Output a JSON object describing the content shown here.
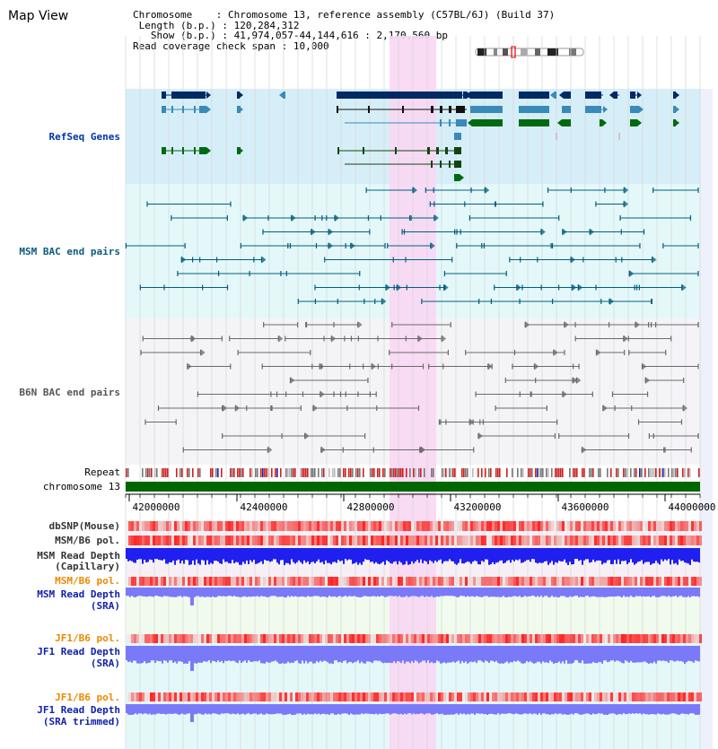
{
  "view_title": "Map View",
  "info": {
    "chromosome_key": "Chromosome",
    "chromosome_val": "Chromosome 13, reference assembly (C57BL/6J) (Build 37)",
    "length_key": "Length (b.p.)",
    "length_val": "120,284,312",
    "show_key": "Show (b.p.)",
    "show_val": "41,974,057-44,144,616 : 2,170,560 bp",
    "coverage_key": "Read coverage check span",
    "coverage_val": "10,000"
  },
  "tracks": {
    "refseq": "RefSeq Genes",
    "msm_bac": "MSM BAC end pairs",
    "b6n_bac": "B6N BAC end pairs",
    "repeat": "Repeat",
    "chromosome": "chromosome 13",
    "dbsnp": "dbSNP(Mouse)",
    "msm_pol_1": "MSM/B6 pol.",
    "msm_depth_cap_1": "MSM Read Depth",
    "msm_depth_cap_2": "(Capillary)",
    "msm_pol_2": "MSM/B6 pol.",
    "msm_depth_sra_1": "MSM Read Depth",
    "msm_depth_sra_2": "(SRA)",
    "jf1_pol_1": "JF1/B6 pol.",
    "jf1_depth_1": "JF1 Read Depth",
    "jf1_depth_2": "(SRA)",
    "jf1_pol_2": "JF1/B6 pol.",
    "jf1_trim_1": "JF1 Read Depth",
    "jf1_trim_2": "(SRA trimmed)"
  },
  "axis": {
    "ticks": [
      "42000000",
      "42400000",
      "42800000",
      "43200000",
      "43600000",
      "44000000"
    ]
  },
  "colors": {
    "refseq_bg": "#d6eef8",
    "msm_bg": "#e4f8fa",
    "b6n_bg": "#f4f4f6",
    "highlight": "#f9d8f3",
    "gene_dark": "#002a66",
    "gene_mid": "#3a8ab8",
    "gene_green": "#006a10",
    "bac_teal": "#005e80",
    "bac_gray": "#6a6a6a",
    "chromosome": "#006600",
    "pol_red": "#ee3333",
    "depth_blue": "#1f1ff0",
    "depth_light": "#7a7af8"
  }
}
